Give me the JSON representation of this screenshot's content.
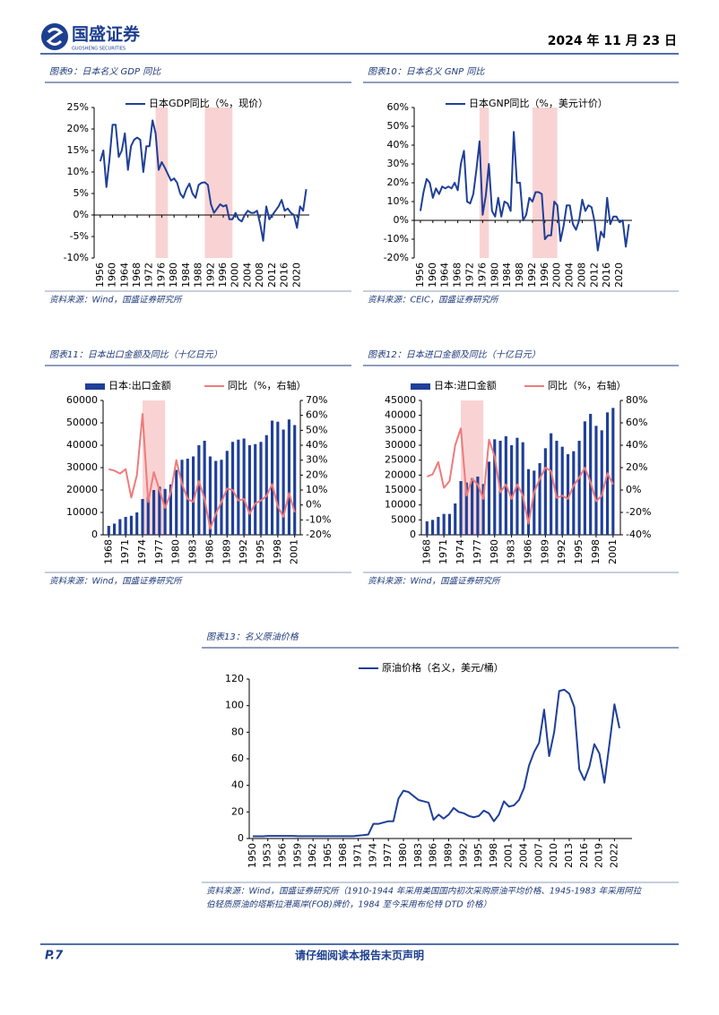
{
  "header": {
    "company": "国盛证券",
    "company_en": "GUOSHENG SECURITIES",
    "date": "2024 年 11 月 23 日"
  },
  "footer": {
    "page": "P.7",
    "notice": "请仔细阅读本报告末页声明"
  },
  "chart_data": [
    {
      "type": "line",
      "caption": "图表9：日本名义 GDP 同比",
      "source": [
        "资料来源：Wind，国盛证券研究所"
      ],
      "x": [
        1956,
        1957,
        1958,
        1959,
        1960,
        1961,
        1962,
        1963,
        1964,
        1965,
        1966,
        1967,
        1968,
        1969,
        1970,
        1971,
        1972,
        1973,
        1974,
        1975,
        1976,
        1977,
        1978,
        1979,
        1980,
        1981,
        1982,
        1983,
        1984,
        1985,
        1986,
        1987,
        1988,
        1989,
        1990,
        1991,
        1992,
        1993,
        1994,
        1995,
        1996,
        1997,
        1998,
        1999,
        2000,
        2001,
        2002,
        2003,
        2004,
        2005,
        2006,
        2007,
        2008,
        2009,
        2010,
        2011,
        2012,
        2013,
        2014,
        2015,
        2016,
        2017,
        2018,
        2019,
        2020,
        2021,
        2022,
        2023
      ],
      "series": [
        {
          "name": "日本GDP同比（%，现价）",
          "color": "#1f3f99",
          "mark": "line",
          "values": [
            12.5,
            15,
            6.5,
            13,
            21,
            21,
            13.5,
            15,
            19,
            10.5,
            16,
            17.5,
            18,
            17.5,
            10,
            16,
            16,
            22,
            19,
            10.5,
            12.3,
            11,
            9.5,
            8,
            8.5,
            7.5,
            5,
            4,
            6,
            7.3,
            5,
            4,
            7,
            7.5,
            7.6,
            7,
            2.5,
            0.5,
            1.5,
            2.5,
            2,
            2.3,
            -1,
            -1,
            0.5,
            -1,
            -1.5,
            0,
            1,
            0.5,
            0.5,
            1,
            -2,
            -6,
            2,
            -1,
            0,
            1,
            2,
            3.5,
            1,
            1.5,
            0.5,
            0,
            -3,
            2,
            1,
            6
          ]
        }
      ],
      "xlim": [
        1954,
        2024
      ],
      "xticks": [
        1956,
        1960,
        1964,
        1968,
        1972,
        1976,
        1980,
        1984,
        1988,
        1992,
        1996,
        2000,
        2004,
        2008,
        2012,
        2016,
        2020
      ],
      "ylim": [
        -10,
        25
      ],
      "yticks": [
        {
          "value": -10,
          "label": "-10%"
        },
        {
          "value": -5,
          "label": "-5%"
        },
        {
          "value": 0,
          "label": "0%"
        },
        {
          "value": 5,
          "label": "5%"
        },
        {
          "value": 10,
          "label": "10%"
        },
        {
          "value": 15,
          "label": "15%"
        },
        {
          "value": 20,
          "label": "20%"
        },
        {
          "value": 25,
          "label": "25%"
        }
      ],
      "shaded_ranges": [
        [
          1974,
          1978
        ],
        [
          1990,
          1999
        ]
      ],
      "shade_color": "#f9d3d3"
    },
    {
      "type": "line",
      "caption": "图表10：日本名义 GNP 同比",
      "source": [
        "资料来源：CEIC，国盛证券研究所"
      ],
      "x": [
        1956,
        1957,
        1958,
        1959,
        1960,
        1961,
        1962,
        1963,
        1964,
        1965,
        1966,
        1967,
        1968,
        1969,
        1970,
        1971,
        1972,
        1973,
        1974,
        1975,
        1976,
        1977,
        1978,
        1979,
        1980,
        1981,
        1982,
        1983,
        1984,
        1985,
        1986,
        1987,
        1988,
        1989,
        1990,
        1991,
        1992,
        1993,
        1994,
        1995,
        1996,
        1997,
        1998,
        1999,
        2000,
        2001,
        2002,
        2003,
        2004,
        2005,
        2006,
        2007,
        2008,
        2009,
        2010,
        2011,
        2012,
        2013,
        2014,
        2015,
        2016,
        2017,
        2018,
        2019,
        2020,
        2021,
        2022,
        2023
      ],
      "series": [
        {
          "name": "日本GNP同比（%，美元计价）",
          "color": "#1f3f99",
          "mark": "line",
          "values": [
            5,
            15,
            22,
            20,
            12,
            17,
            14,
            18,
            17,
            18,
            17,
            20,
            16,
            30,
            37,
            10,
            9,
            14,
            27,
            42,
            3,
            13,
            30,
            5,
            2,
            12,
            2,
            10,
            9,
            5,
            47,
            20,
            20,
            0,
            3,
            12,
            10,
            15,
            15,
            14,
            -10,
            -8,
            -8,
            10,
            8,
            -11,
            -3,
            8,
            8,
            -2,
            -5,
            0,
            11,
            5,
            8,
            7,
            -1,
            -16,
            -6,
            -9,
            12,
            -2,
            2,
            2,
            -1,
            0,
            -14,
            -2
          ]
        }
      ],
      "xlim": [
        1954,
        2024
      ],
      "xticks": [
        1956,
        1960,
        1964,
        1968,
        1972,
        1976,
        1980,
        1984,
        1988,
        1992,
        1996,
        2000,
        2004,
        2008,
        2012,
        2016,
        2020
      ],
      "ylim": [
        -20,
        60
      ],
      "yticks": [
        {
          "value": -20,
          "label": "-20%"
        },
        {
          "value": -10,
          "label": "-10%"
        },
        {
          "value": 0,
          "label": "0%"
        },
        {
          "value": 10,
          "label": "10%"
        },
        {
          "value": 20,
          "label": "20%"
        },
        {
          "value": 30,
          "label": "30%"
        },
        {
          "value": 40,
          "label": "40%"
        },
        {
          "value": 50,
          "label": "50%"
        },
        {
          "value": 60,
          "label": "60%"
        }
      ],
      "shaded_ranges": [
        [
          1975,
          1978
        ],
        [
          1992,
          2000
        ]
      ],
      "shade_color": "#f9d3d3"
    },
    {
      "type": "combo",
      "caption": "图表11：日本出口金额及同比（十亿日元）",
      "source": [
        "资料来源：Wind，国盛证券研究所"
      ],
      "x": [
        1968,
        1969,
        1970,
        1971,
        1972,
        1973,
        1974,
        1975,
        1976,
        1977,
        1978,
        1979,
        1980,
        1981,
        1982,
        1983,
        1984,
        1985,
        1986,
        1987,
        1988,
        1989,
        1990,
        1991,
        1992,
        1993,
        1994,
        1995,
        1996,
        1997,
        1998,
        1999,
        2000,
        2001
      ],
      "series": [
        {
          "name": "日本:出口金额",
          "color": "#1f3f99",
          "mark": "bar",
          "values": [
            4000,
            5000,
            7000,
            8000,
            8500,
            10000,
            16000,
            17000,
            20000,
            21500,
            20500,
            22500,
            29000,
            33500,
            34000,
            35000,
            40000,
            42000,
            35000,
            33000,
            33500,
            37500,
            41500,
            42500,
            43000,
            40000,
            40500,
            41500,
            44500,
            51000,
            50500,
            47000,
            51500,
            49000
          ]
        },
        {
          "name": "同比（%，右轴）",
          "color": "#f07a7a",
          "mark": "line",
          "axis": "y2",
          "values": [
            24,
            23,
            21,
            24,
            5,
            20,
            61,
            2,
            22,
            10,
            -2,
            8,
            30,
            14,
            4,
            2,
            16,
            4,
            -16,
            -6,
            2,
            11,
            10,
            3,
            4,
            -6,
            1,
            3,
            6,
            14,
            -1,
            -8,
            8,
            -5
          ]
        }
      ],
      "xlim": [
        1967,
        2002
      ],
      "xticks": [
        1968,
        1971,
        1974,
        1977,
        1980,
        1983,
        1986,
        1989,
        1992,
        1995,
        1998,
        2001
      ],
      "ylim": [
        0,
        60000
      ],
      "yticks": [
        0,
        10000,
        20000,
        30000,
        40000,
        50000,
        60000
      ],
      "y2lim": [
        -20,
        70
      ],
      "y2ticks": [
        {
          "value": -20,
          "label": "-20%"
        },
        {
          "value": -10,
          "label": "-10%"
        },
        {
          "value": 0,
          "label": "0%"
        },
        {
          "value": 10,
          "label": "10%"
        },
        {
          "value": 20,
          "label": "20%"
        },
        {
          "value": 30,
          "label": "30%"
        },
        {
          "value": 40,
          "label": "40%"
        },
        {
          "value": 50,
          "label": "50%"
        },
        {
          "value": 60,
          "label": "60%"
        },
        {
          "value": 70,
          "label": "70%"
        }
      ],
      "shaded_ranges": [
        [
          1974,
          1978
        ]
      ],
      "shade_color": "#f9d3d3"
    },
    {
      "type": "combo",
      "caption": "图表12：日本进口金额及同比（十亿日元）",
      "source": [
        "资料来源：Wind，国盛证券研究所"
      ],
      "x": [
        1968,
        1969,
        1970,
        1971,
        1972,
        1973,
        1974,
        1975,
        1976,
        1977,
        1978,
        1979,
        1980,
        1981,
        1982,
        1983,
        1984,
        1985,
        1986,
        1987,
        1988,
        1989,
        1990,
        1991,
        1992,
        1993,
        1994,
        1995,
        1996,
        1997,
        1998,
        1999,
        2000,
        2001
      ],
      "series": [
        {
          "name": "日本:进口金额",
          "color": "#1f3f99",
          "mark": "bar",
          "values": [
            4500,
            5000,
            6000,
            7000,
            7000,
            10500,
            18000,
            17500,
            19000,
            19500,
            17000,
            24500,
            32000,
            31500,
            33000,
            30000,
            32500,
            31000,
            22000,
            21500,
            24000,
            29000,
            34000,
            31500,
            29500,
            27000,
            28000,
            31500,
            38000,
            40500,
            36500,
            35000,
            41000,
            42500
          ]
        },
        {
          "name": "同比（%，右轴）",
          "color": "#f07a7a",
          "mark": "line",
          "axis": "y2",
          "values": [
            12,
            14,
            25,
            2,
            8,
            40,
            55,
            -5,
            10,
            5,
            -8,
            45,
            30,
            -2,
            5,
            -8,
            5,
            -5,
            -30,
            -2,
            10,
            20,
            17,
            -7,
            -5,
            -8,
            4,
            11,
            20,
            7,
            -10,
            -5,
            15,
            5
          ]
        }
      ],
      "xlim": [
        1967,
        2002.3
      ],
      "xticks": [
        1968,
        1971,
        1974,
        1977,
        1980,
        1983,
        1986,
        1989,
        1992,
        1995,
        1998,
        2001
      ],
      "ylim": [
        0,
        45000
      ],
      "yticks": [
        0,
        5000,
        10000,
        15000,
        20000,
        25000,
        30000,
        35000,
        40000,
        45000
      ],
      "y2lim": [
        -40,
        80
      ],
      "y2ticks": [
        {
          "value": -40,
          "label": "-40%"
        },
        {
          "value": -20,
          "label": "-20%"
        },
        {
          "value": 0,
          "label": "0%"
        },
        {
          "value": 20,
          "label": "20%"
        },
        {
          "value": 40,
          "label": "40%"
        },
        {
          "value": 60,
          "label": "60%"
        },
        {
          "value": 80,
          "label": "80%"
        }
      ],
      "shaded_ranges": [
        [
          1974,
          1978
        ]
      ],
      "shade_color": "#f9d3d3"
    },
    {
      "type": "line",
      "caption": "图表13：名义原油价格",
      "source": [
        "资料来源：Wind，国盛证券研究所（1910-1944 年采用美国国内初次采购原油平均价格、1945-1983 年采用阿拉",
        "伯轻质原油的塔斯拉港离岸(FOB)牌价，1984 至今采用布伦特 DTD 价格）"
      ],
      "x": [
        1950,
        1951,
        1952,
        1953,
        1954,
        1955,
        1956,
        1957,
        1958,
        1959,
        1960,
        1961,
        1962,
        1963,
        1964,
        1965,
        1966,
        1967,
        1968,
        1969,
        1970,
        1971,
        1972,
        1973,
        1974,
        1975,
        1976,
        1977,
        1978,
        1979,
        1980,
        1981,
        1982,
        1983,
        1984,
        1985,
        1986,
        1987,
        1988,
        1989,
        1990,
        1991,
        1992,
        1993,
        1994,
        1995,
        1996,
        1997,
        1998,
        1999,
        2000,
        2001,
        2002,
        2003,
        2004,
        2005,
        2006,
        2007,
        2008,
        2009,
        2010,
        2011,
        2012,
        2013,
        2014,
        2015,
        2016,
        2017,
        2018,
        2019,
        2020,
        2021,
        2022,
        2023
      ],
      "series": [
        {
          "name": "原油价格（名义，美元/桶）",
          "color": "#1f3f99",
          "mark": "line",
          "values": [
            1.71,
            1.71,
            1.71,
            1.93,
            1.93,
            1.93,
            1.93,
            1.9,
            1.9,
            1.8,
            1.8,
            1.8,
            1.8,
            1.8,
            1.8,
            1.8,
            1.8,
            1.8,
            1.8,
            1.8,
            1.8,
            2.2,
            2.5,
            3,
            11,
            11,
            12,
            13,
            13,
            30,
            36,
            35,
            32,
            29,
            28,
            27,
            14,
            18,
            15,
            18,
            23,
            20,
            19,
            17,
            16,
            17,
            21,
            19,
            13,
            18,
            28,
            24,
            25,
            29,
            38,
            55,
            65,
            72,
            97,
            62,
            80,
            111,
            112,
            109,
            99,
            52,
            44,
            54,
            71,
            64,
            42,
            71,
            101,
            83
          ]
        }
      ],
      "xlim": [
        1949.3,
        2025.5
      ],
      "xticks": [
        1950,
        1953,
        1956,
        1959,
        1962,
        1965,
        1968,
        1971,
        1974,
        1977,
        1980,
        1983,
        1986,
        1989,
        1992,
        1995,
        1998,
        2001,
        2004,
        2007,
        2010,
        2013,
        2016,
        2019,
        2022
      ],
      "ylim": [
        0,
        120
      ],
      "yticks": [
        0,
        20,
        40,
        60,
        80,
        100,
        120
      ]
    }
  ]
}
